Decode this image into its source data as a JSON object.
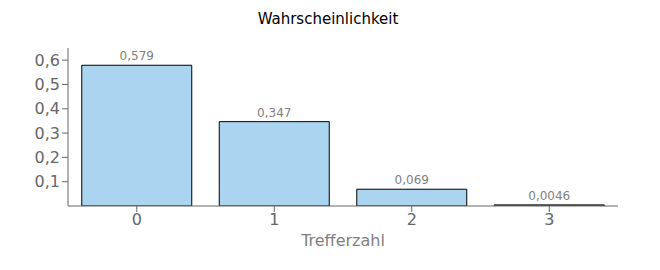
{
  "chart_data": {
    "type": "bar",
    "title": "Wahrscheinlichkeit",
    "x_label": "Trefferzahl",
    "categories": [
      "0",
      "1",
      "2",
      "3"
    ],
    "values": [
      0.579,
      0.347,
      0.069,
      0.0046
    ],
    "value_labels": [
      "0,579",
      "0,347",
      "0,069",
      "0,0046"
    ],
    "data_labels": true,
    "color": "#aad4f0",
    "ylim": [
      0,
      0.65
    ],
    "yticks": [
      {
        "value": 0.1,
        "label": "0,1"
      },
      {
        "value": 0.2,
        "label": "0,2"
      },
      {
        "value": 0.3,
        "label": "0,3"
      },
      {
        "value": 0.4,
        "label": "0,4"
      },
      {
        "value": 0.5,
        "label": "0,5"
      },
      {
        "value": 0.6,
        "label": "0,6"
      }
    ],
    "grid": false
  }
}
